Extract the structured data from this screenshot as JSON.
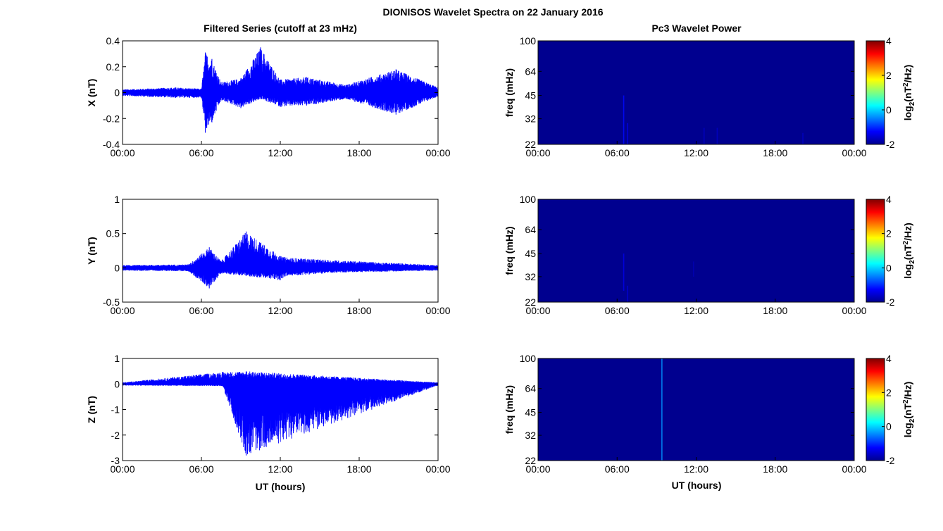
{
  "figure": {
    "title": "DIONISOS Wavelet Spectra on 22 January 2016",
    "left_title": "Filtered Series (cutoff at 23 mHz)",
    "right_title": "Pc3 Wavelet Power",
    "xlabel": "UT (hours)",
    "colorbar_label": "log2(nT2/Hz)"
  },
  "colors": {
    "series": "#0000ff",
    "spectrogram_bg": "#00008f",
    "axes": "#000000"
  },
  "chart_data": [
    {
      "type": "line",
      "ylabel": "X (nT)",
      "ylim": [
        -0.4,
        0.4
      ],
      "yticks": [
        "0.4",
        "0.2",
        "0",
        "-0.2",
        "-0.4"
      ],
      "xticks": [
        "00:00",
        "06:00",
        "12:00",
        "18:00",
        "00:00"
      ],
      "x_hours": [
        0,
        4,
        6.0,
        6.3,
        6.8,
        7.5,
        9,
        10.5,
        12,
        14,
        17,
        20.8,
        24
      ],
      "env_upper": [
        0.025,
        0.04,
        0.03,
        0.31,
        0.26,
        0.08,
        0.11,
        0.35,
        0.1,
        0.12,
        0.06,
        0.18,
        0.04
      ],
      "env_lower": [
        -0.025,
        -0.04,
        -0.04,
        -0.31,
        -0.23,
        -0.06,
        -0.12,
        -0.05,
        -0.11,
        -0.1,
        -0.05,
        -0.17,
        -0.03
      ],
      "series": [
        {
          "name": "",
          "color": "#0000ff"
        }
      ]
    },
    {
      "type": "line",
      "ylabel": "Y (nT)",
      "ylim": [
        -0.5,
        1
      ],
      "yticks": [
        "1",
        "0.5",
        "0",
        "-0.5"
      ],
      "xticks": [
        "00:00",
        "06:00",
        "12:00",
        "18:00",
        "00:00"
      ],
      "x_hours": [
        0,
        5,
        6.6,
        7.5,
        9.4,
        12,
        12.5,
        16.3,
        24
      ],
      "env_upper": [
        0.04,
        0.05,
        0.3,
        0.1,
        0.53,
        0.17,
        0.15,
        0.11,
        0.04
      ],
      "env_lower": [
        -0.04,
        -0.05,
        -0.3,
        -0.08,
        -0.12,
        -0.18,
        -0.12,
        -0.07,
        -0.04
      ],
      "series": [
        {
          "name": "",
          "color": "#0000ff"
        }
      ]
    },
    {
      "type": "line",
      "ylabel": "Z (nT)",
      "ylim": [
        -3,
        1
      ],
      "yticks": [
        "1",
        "0",
        "-1",
        "-2",
        "-3"
      ],
      "xticks": [
        "00:00",
        "06:00",
        "12:00",
        "18:00",
        "00:00"
      ],
      "x_hours": [
        0,
        7.6,
        9.4,
        24
      ],
      "env_upper": [
        0.06,
        0.47,
        0.5,
        0.06
      ],
      "env_lower": [
        -0.06,
        -0.08,
        -2.8,
        -0.06
      ],
      "series": [
        {
          "name": "",
          "color": "#0000ff"
        }
      ]
    },
    {
      "type": "heatmap",
      "title": "Pc3 Wavelet Power",
      "ylabel": "freq (mHz)",
      "yticks": [
        "100",
        "64",
        "45",
        "32",
        "22"
      ],
      "xticks": [
        "00:00",
        "06:00",
        "12:00",
        "18:00",
        "00:00"
      ],
      "clim": [
        -2,
        4
      ],
      "colorbar_ticks": [
        "4",
        "2",
        "0",
        "-2"
      ],
      "features": [
        {
          "time_h": 6.5,
          "freq_mHz": [
            22,
            45
          ],
          "level": -1.2
        },
        {
          "time_h": 6.8,
          "freq_mHz": [
            22,
            30
          ],
          "level": -1.4
        },
        {
          "time_h": 12.6,
          "freq_mHz": [
            22,
            28
          ],
          "level": -1.6
        },
        {
          "time_h": 13.6,
          "freq_mHz": [
            22,
            28
          ],
          "level": -1.6
        },
        {
          "time_h": 20.1,
          "freq_mHz": [
            22,
            26
          ],
          "level": -1.6
        }
      ]
    },
    {
      "type": "heatmap",
      "title": "",
      "ylabel": "freq (mHz)",
      "yticks": [
        "100",
        "64",
        "45",
        "32",
        "22"
      ],
      "xticks": [
        "00:00",
        "06:00",
        "12:00",
        "18:00",
        "00:00"
      ],
      "clim": [
        -2,
        4
      ],
      "colorbar_ticks": [
        "4",
        "2",
        "0",
        "-2"
      ],
      "features": [
        {
          "time_h": 6.5,
          "freq_mHz": [
            26,
            45
          ],
          "level": -1.4
        },
        {
          "time_h": 6.8,
          "freq_mHz": [
            22,
            28
          ],
          "level": -1.5
        },
        {
          "time_h": 11.8,
          "freq_mHz": [
            32,
            40
          ],
          "level": -1.7
        }
      ]
    },
    {
      "type": "heatmap",
      "title": "",
      "ylabel": "freq (mHz)",
      "yticks": [
        "100",
        "64",
        "45",
        "32",
        "22"
      ],
      "xticks": [
        "00:00",
        "06:00",
        "12:00",
        "18:00",
        "00:00"
      ],
      "clim": [
        -2,
        4
      ],
      "colorbar_ticks": [
        "4",
        "2",
        "0",
        "-2"
      ],
      "features": [
        {
          "time_h": 9.4,
          "freq_mHz": [
            22,
            100
          ],
          "level": -0.4
        }
      ]
    }
  ]
}
